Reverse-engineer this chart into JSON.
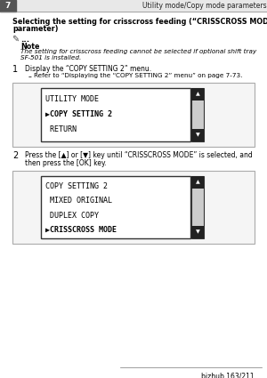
{
  "page_num": "7",
  "header_text": "Utility mode/Copy mode parameters",
  "section_title_bold": "Selecting the setting for crisscross feeding (“CRISSCROSS MODE”",
  "section_title_bold2": "parameter)",
  "note_dots": "...",
  "note_label": "Note",
  "note_text_line1": "The setting for crisscross feeding cannot be selected if optional shift tray",
  "note_text_line2": "SF-501 is installed.",
  "step1_num": "1",
  "step1_text": "Display the “COPY SETTING 2” menu.",
  "step1_sub": "Refer to “Displaying the “COPY SETTING 2” menu” on page 7-73.",
  "box1_lines": [
    "UTILITY MODE",
    "▶COPY SETTING 2",
    " RETURN"
  ],
  "step2_num": "2",
  "step2_text_line1": "Press the [▲] or [▼] key until “CRISSCROSS MODE” is selected, and",
  "step2_text_line2": "then press the [OK] key.",
  "box2_lines": [
    "COPY SETTING 2",
    " MIXED ORIGINAL",
    " DUPLEX COPY",
    "▶CRISSCROSS MODE"
  ],
  "footer_text": "bizhub 163/211",
  "bg_color": "#ffffff",
  "text_color": "#000000"
}
